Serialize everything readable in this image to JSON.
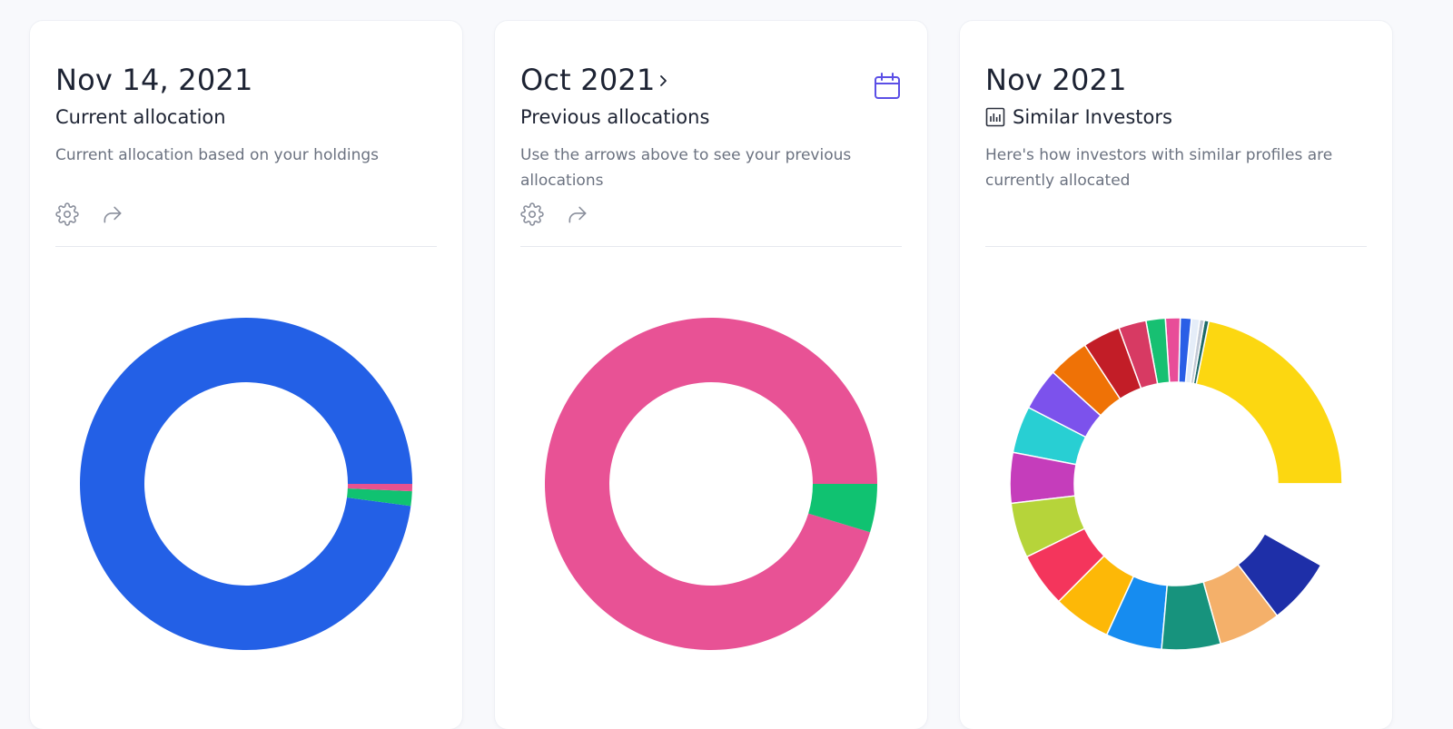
{
  "cards": [
    {
      "date": "Nov 14, 2021",
      "subtitle": "Current allocation",
      "description": "Current allocation based on your holdings",
      "icons": [
        "gear-icon",
        "share-icon"
      ],
      "chart_data": {
        "type": "pie",
        "donut": true,
        "values": [
          96.5,
          1.4,
          0.7
        ],
        "colors": [
          "#2360e6",
          "#10c271",
          "#e8528f"
        ]
      }
    },
    {
      "date": "Oct 2021",
      "subtitle": "Previous allocations",
      "description": "Use the arrows above to see your previous allocations",
      "icons": [
        "chevron-right-icon",
        "calendar-icon",
        "gear-icon",
        "share-icon"
      ],
      "accent": "#5b4fe6",
      "chart_data": {
        "type": "pie",
        "donut": true,
        "values": [
          95.3,
          4.7
        ],
        "colors": [
          "#e85295",
          "#10c271"
        ]
      }
    },
    {
      "date": "Nov 2021",
      "subtitle": "Similar Investors",
      "description": "Here's how investors with similar profiles are currently allocated",
      "icons": [
        "bar-chart-icon"
      ],
      "chart_data": {
        "type": "pie",
        "donut": true,
        "values": [
          24.4,
          0.5,
          0.5,
          0.9,
          1.2,
          1.6,
          2.1,
          3.0,
          4.1,
          4.5,
          4.6,
          5.1,
          5.5,
          6.0,
          5.9,
          6.3,
          6.1,
          6.4,
          6.8,
          7.2,
          9.1
        ],
        "colors": [
          "#fcd711",
          "#1f6a68",
          "#c2c9d6",
          "#e5edf8",
          "#2a5ee6",
          "#e84d98",
          "#17c072",
          "#d73a63",
          "#c21d27",
          "#ef7206",
          "#7c52ec",
          "#28cfd3",
          "#c53dbb",
          "#b6d43a",
          "#f4355c",
          "#fdb807",
          "#168cf0",
          "#17937d",
          "#f4b06a",
          "#1e2fa8",
          "#ffffff"
        ]
      }
    }
  ]
}
